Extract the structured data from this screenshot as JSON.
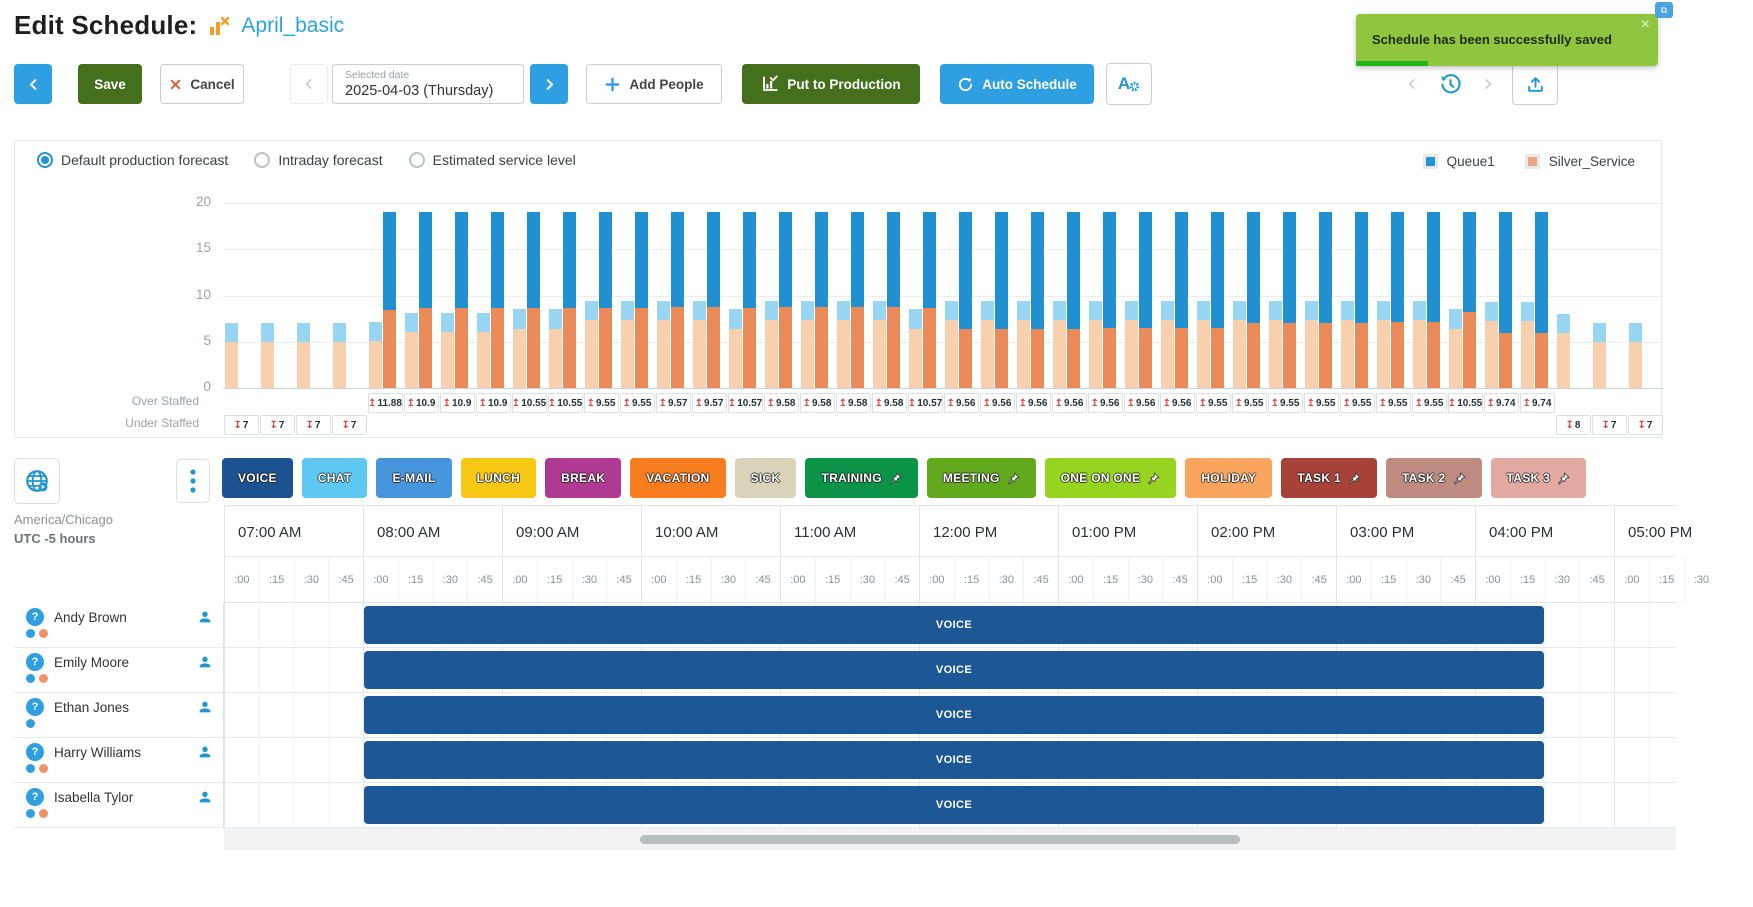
{
  "header": {
    "title": "Edit Schedule:",
    "schedule_name": "April_basic"
  },
  "toast": {
    "message": "Schedule has been successfully saved",
    "close_glyph": "×"
  },
  "toolbar": {
    "save": "Save",
    "cancel": "Cancel",
    "date_label": "Selected date",
    "date_value": "2025-04-03 (Thursday)",
    "add_people": "Add People",
    "put_to_production": "Put to Production",
    "auto_schedule": "Auto Schedule"
  },
  "forecast_options": [
    {
      "label": "Default production forecast",
      "selected": true
    },
    {
      "label": "Intraday forecast",
      "selected": false
    },
    {
      "label": "Estimated service level",
      "selected": false
    }
  ],
  "legend": [
    {
      "label": "Queue1",
      "color": "#2196d3"
    },
    {
      "label": "Silver_Service",
      "color": "#eda47e"
    }
  ],
  "chart_data": {
    "type": "bar",
    "title": "Default production forecast",
    "ylim": [
      0,
      20
    ],
    "yticks": [
      0,
      5,
      10,
      15,
      20
    ],
    "x": [
      "07:00",
      "07:15",
      "07:30",
      "07:45",
      "08:00",
      "08:15",
      "08:30",
      "08:45",
      "09:00",
      "09:15",
      "09:30",
      "09:45",
      "10:00",
      "10:15",
      "10:30",
      "10:45",
      "11:00",
      "11:15",
      "11:30",
      "11:45",
      "12:00",
      "12:15",
      "12:30",
      "12:45",
      "13:00",
      "13:15",
      "13:30",
      "13:45",
      "14:00",
      "14:15",
      "14:30",
      "14:45",
      "15:00",
      "15:15",
      "15:30",
      "15:45",
      "16:00",
      "16:15",
      "16:30",
      "16:45"
    ],
    "series": [
      {
        "name": "Forecast Silver_Service",
        "color": "#f8d0ad",
        "values": [
          5,
          5,
          5,
          5,
          5.1,
          6.1,
          6.1,
          6.1,
          6.4,
          6.4,
          7.3,
          7.3,
          7.3,
          7.3,
          6.4,
          7.3,
          7.3,
          7.3,
          7.3,
          6.4,
          7.3,
          7.3,
          7.3,
          7.3,
          7.3,
          7.3,
          7.3,
          7.3,
          7.3,
          7.3,
          7.3,
          7.3,
          7.3,
          7.3,
          6.4,
          7.2,
          7.2,
          6,
          5,
          5
        ]
      },
      {
        "name": "Forecast Queue1",
        "color": "#97d5f2",
        "values": [
          2,
          2,
          2,
          2,
          2,
          2,
          2,
          2,
          2.1,
          2.1,
          2.1,
          2.1,
          2.1,
          2.1,
          2.1,
          2.1,
          2.1,
          2.1,
          2.1,
          2.1,
          2.1,
          2.1,
          2.1,
          2.1,
          2.1,
          2.1,
          2.1,
          2.1,
          2.1,
          2.1,
          2.1,
          2.1,
          2.1,
          2.1,
          2.1,
          2.1,
          2.1,
          2,
          2,
          2
        ]
      },
      {
        "name": "Scheduled Silver_Service",
        "color": "#ea8a59",
        "values": [
          0,
          0,
          0,
          0,
          8.4,
          8.7,
          8.7,
          8.7,
          8.6,
          8.6,
          8.6,
          8.6,
          8.8,
          8.8,
          8.7,
          8.8,
          8.8,
          8.8,
          8.8,
          8.6,
          6.4,
          6.4,
          6.4,
          6.4,
          6.5,
          6.5,
          6.5,
          6.5,
          7,
          7,
          7,
          7,
          7.1,
          7.1,
          8.2,
          6,
          5.9,
          0,
          0,
          0
        ]
      },
      {
        "name": "Scheduled Queue1",
        "color": "#2090d0",
        "values": [
          0,
          0,
          0,
          0,
          10.6,
          10.3,
          10.3,
          10.3,
          10.4,
          10.4,
          10.4,
          10.4,
          10.2,
          10.2,
          10.3,
          10.2,
          10.2,
          10.2,
          10.2,
          10.4,
          12.6,
          12.6,
          12.6,
          12.6,
          12.5,
          12.5,
          12.5,
          12.5,
          12,
          12,
          12,
          12,
          11.9,
          11.9,
          10.8,
          13,
          13.1,
          0,
          0,
          0
        ]
      }
    ],
    "grid": true,
    "legend_position": "top-right"
  },
  "staffing": {
    "over_label": "Over Staffed",
    "under_label": "Under Staffed",
    "up_glyph": "↥",
    "down_glyph": "↧",
    "over_start_index": 4,
    "over_values": [
      "11.88",
      "10.9",
      "10.9",
      "10.9",
      "10.55",
      "10.55",
      "9.55",
      "9.55",
      "9.57",
      "9.57",
      "10.57",
      "9.58",
      "9.58",
      "9.58",
      "9.58",
      "10.57",
      "9.56",
      "9.56",
      "9.56",
      "9.56",
      "9.56",
      "9.56",
      "9.56",
      "9.55",
      "9.55",
      "9.55",
      "9.55",
      "9.55",
      "9.55",
      "9.55",
      "10.55",
      "9.74",
      "9.74"
    ],
    "under_start_index": 0,
    "under_start_values": [
      "7",
      "7",
      "7",
      "7"
    ],
    "under_end_index": 37,
    "under_end_values": [
      "8",
      "7",
      "7"
    ]
  },
  "activities": [
    {
      "label": "VOICE",
      "color": "#1c5291",
      "pinned": false
    },
    {
      "label": "CHAT",
      "color": "#5ec8f2",
      "pinned": false
    },
    {
      "label": "E-MAIL",
      "color": "#4795dd",
      "pinned": false
    },
    {
      "label": "LUNCH",
      "color": "#f6c713",
      "pinned": false
    },
    {
      "label": "BREAK",
      "color": "#b03a93",
      "pinned": false
    },
    {
      "label": "VACATION",
      "color": "#f87d1e",
      "pinned": false
    },
    {
      "label": "SICK",
      "color": "#d9d3b9",
      "pinned": false
    },
    {
      "label": "TRAINING",
      "color": "#0b9347",
      "pinned": true
    },
    {
      "label": "MEETING",
      "color": "#63a91d",
      "pinned": true
    },
    {
      "label": "ONE ON ONE",
      "color": "#96d420",
      "pinned": true
    },
    {
      "label": "HOLIDAY",
      "color": "#f9a55d",
      "pinned": false
    },
    {
      "label": "TASK 1",
      "color": "#a64238",
      "pinned": true
    },
    {
      "label": "TASK 2",
      "color": "#bd8b80",
      "pinned": true
    },
    {
      "label": "TASK 3",
      "color": "#e2a9a1",
      "pinned": true
    }
  ],
  "timezone": {
    "region": "America/Chicago",
    "offset": "UTC -5 hours"
  },
  "timeline": {
    "hours": [
      "07:00 AM",
      "08:00 AM",
      "09:00 AM",
      "10:00 AM",
      "11:00 AM",
      "12:00 PM",
      "01:00 PM",
      "02:00 PM",
      "03:00 PM",
      "04:00 PM",
      "05:00 PM"
    ],
    "quarters": [
      ":00",
      ":15",
      ":30",
      ":45"
    ]
  },
  "employees": [
    {
      "name": "Andy Brown",
      "dots": [
        "#2e9fe0",
        "#ef9368"
      ],
      "shift": "VOICE"
    },
    {
      "name": "Emily Moore",
      "dots": [
        "#2e9fe0",
        "#ef9368"
      ],
      "shift": "VOICE"
    },
    {
      "name": "Ethan Jones",
      "dots": [
        "#2e9fe0"
      ],
      "shift": "VOICE"
    },
    {
      "name": "Harry Williams",
      "dots": [
        "#2e9fe0",
        "#ef9368"
      ],
      "shift": "VOICE"
    },
    {
      "name": "Isabella Tylor",
      "dots": [
        "#2e9fe0",
        "#ef9368"
      ],
      "shift": "VOICE"
    }
  ]
}
